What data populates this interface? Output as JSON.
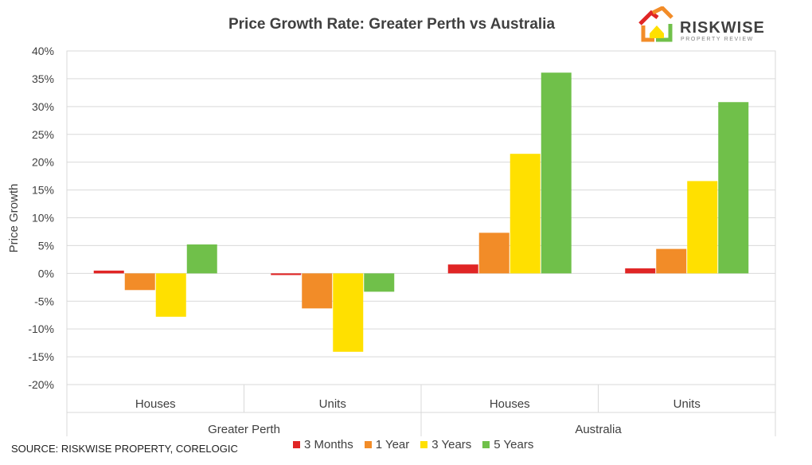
{
  "chart_data": {
    "type": "bar",
    "title": "Price Growth Rate: Greater Perth vs Australia",
    "xlabel": "",
    "ylabel": "Price Growth",
    "ylim": [
      -20,
      40
    ],
    "yticks": [
      40,
      35,
      30,
      25,
      20,
      15,
      10,
      5,
      0,
      -5,
      -10,
      -15,
      -20
    ],
    "ytick_labels": [
      "40%",
      "35%",
      "30%",
      "25%",
      "20%",
      "15%",
      "10%",
      "5%",
      "0%",
      "-5%",
      "-10%",
      "-15%",
      "-20%"
    ],
    "grid": true,
    "legend_position": "bottom",
    "groups": [
      {
        "label": "Greater Perth",
        "categories": [
          "Houses",
          "Units"
        ]
      },
      {
        "label": "Australia",
        "categories": [
          "Houses",
          "Units"
        ]
      }
    ],
    "categories": [
      "Houses",
      "Units",
      "Houses",
      "Units"
    ],
    "series": [
      {
        "name": "3 Months",
        "color": "#e02525",
        "values": [
          0.5,
          -0.3,
          1.6,
          0.9
        ]
      },
      {
        "name": "1 Year",
        "color": "#f28c28",
        "values": [
          -3.0,
          -6.3,
          7.3,
          4.4
        ]
      },
      {
        "name": "3 Years",
        "color": "#ffe000",
        "values": [
          -7.8,
          -14.1,
          21.5,
          16.6
        ]
      },
      {
        "name": "5 Years",
        "color": "#70c04a",
        "values": [
          5.2,
          -3.3,
          36.1,
          30.8
        ]
      }
    ]
  },
  "source": "SOURCE: RISKWISE PROPERTY, CORELOGIC",
  "logo": {
    "name": "RISKWISE",
    "tagline": "PROPERTY REVIEW",
    "colors": [
      "#e02525",
      "#f28c28",
      "#ffe000",
      "#70c04a"
    ]
  }
}
